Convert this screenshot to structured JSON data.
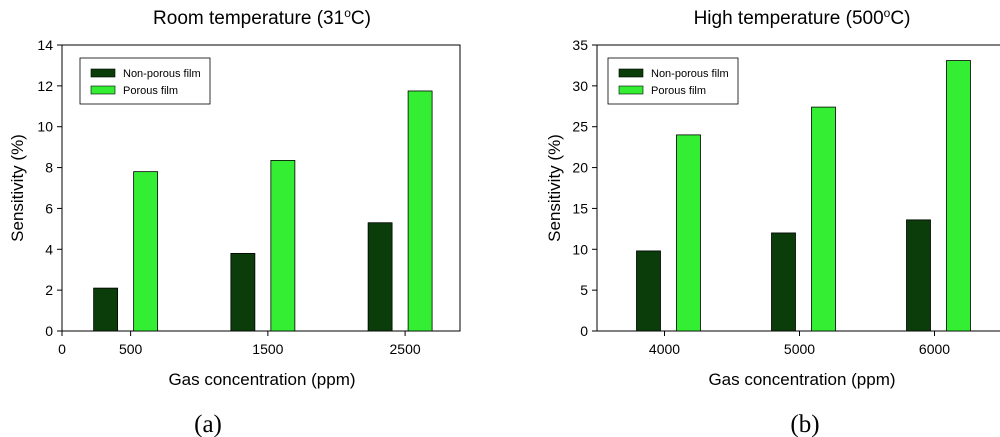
{
  "chart_data": [
    {
      "type": "bar",
      "panel_label": "(a)",
      "title_prefix": "Room temperature  (31",
      "title_sup": "o",
      "title_suffix": "C)",
      "xlabel": "Gas concentration (ppm)",
      "ylabel": "Sensitivity (%)",
      "xlim": [
        0,
        2900
      ],
      "ylim": [
        0,
        14
      ],
      "yticks": [
        0,
        2,
        4,
        6,
        8,
        10,
        12,
        14
      ],
      "xticks": [
        0,
        500,
        1500,
        2500
      ],
      "categories": [
        500,
        1500,
        2500
      ],
      "series": [
        {
          "name": "Non-porous film",
          "color": "#0a3d0a",
          "values": [
            2.1,
            3.8,
            5.3
          ]
        },
        {
          "name": "Porous film",
          "color": "#33ee33",
          "values": [
            7.8,
            8.35,
            11.75
          ]
        }
      ],
      "legend_position": "top-left"
    },
    {
      "type": "bar",
      "panel_label": "(b)",
      "title_prefix": "High temperature  (500",
      "title_sup": "o",
      "title_suffix": "C)",
      "xlabel": "Gas concentration (ppm)",
      "ylabel": "Sensitivity (%)",
      "ylim": [
        0,
        35
      ],
      "yticks": [
        0,
        5,
        10,
        15,
        20,
        25,
        30,
        35
      ],
      "categories": [
        4000,
        5000,
        6000
      ],
      "series": [
        {
          "name": "Non-porous film",
          "color": "#0a3d0a",
          "values": [
            9.8,
            12.0,
            13.6
          ]
        },
        {
          "name": "Porous film",
          "color": "#33ee33",
          "values": [
            24.0,
            27.4,
            33.1
          ]
        }
      ],
      "legend_position": "top-left"
    }
  ]
}
